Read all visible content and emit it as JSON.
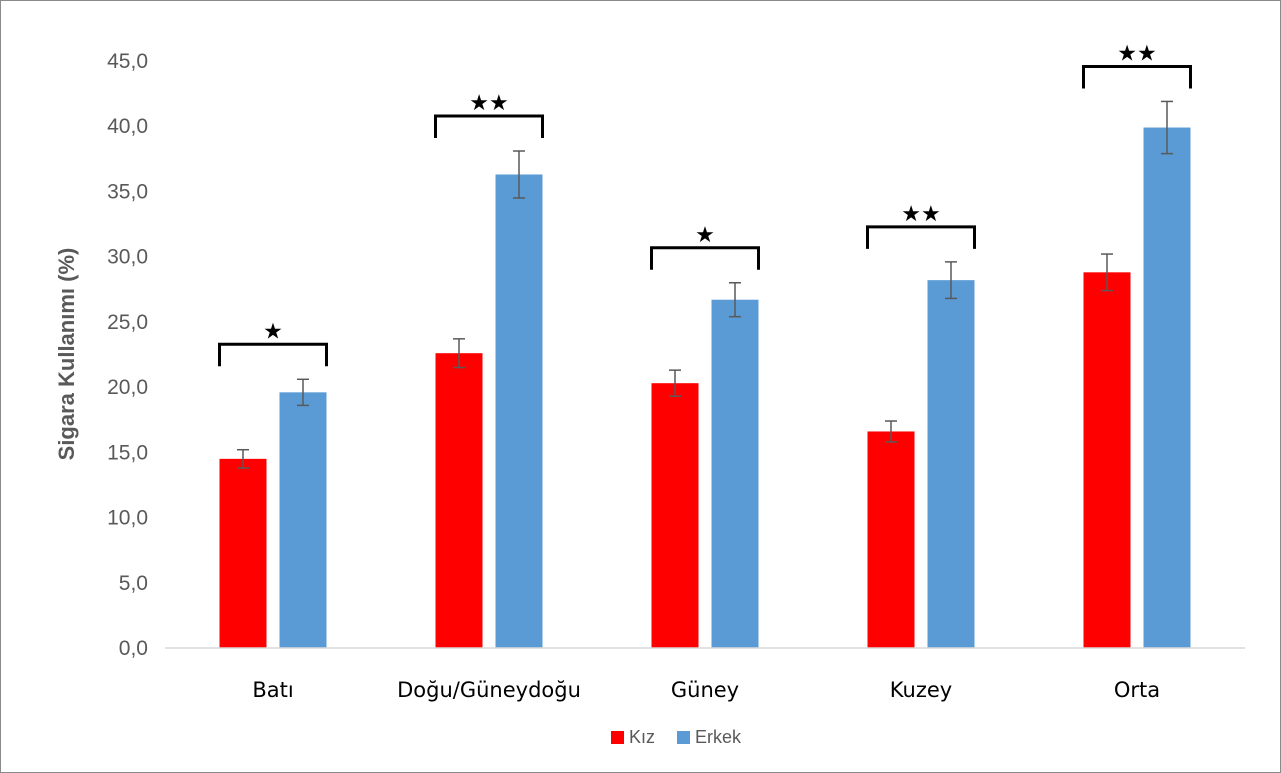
{
  "chart_data": {
    "type": "bar",
    "title": "",
    "xlabel": "",
    "ylabel": "Sigara Kullanımı (%)",
    "ylim": [
      0,
      45
    ],
    "yticks": [
      "0,0",
      "5,0",
      "10,0",
      "15,0",
      "20,0",
      "25,0",
      "30,0",
      "35,0",
      "40,0",
      "45,0"
    ],
    "grid": false,
    "legend_position": "bottom",
    "categories": [
      "Batı",
      "Doğu/Güneydoğu",
      "Güney",
      "Kuzey",
      "Orta"
    ],
    "series": [
      {
        "name": "Kız",
        "color": "#ff0000",
        "values": [
          14.5,
          22.6,
          20.3,
          16.6,
          28.8
        ],
        "error": [
          0.7,
          1.1,
          1.0,
          0.8,
          1.4
        ]
      },
      {
        "name": "Erkek",
        "color": "#5b9bd5",
        "values": [
          19.6,
          36.3,
          26.7,
          28.2,
          39.9
        ],
        "error": [
          1.0,
          1.8,
          1.3,
          1.4,
          2.0
        ]
      }
    ],
    "significance": [
      "★",
      "★★",
      "★",
      "★★",
      "★★"
    ]
  }
}
